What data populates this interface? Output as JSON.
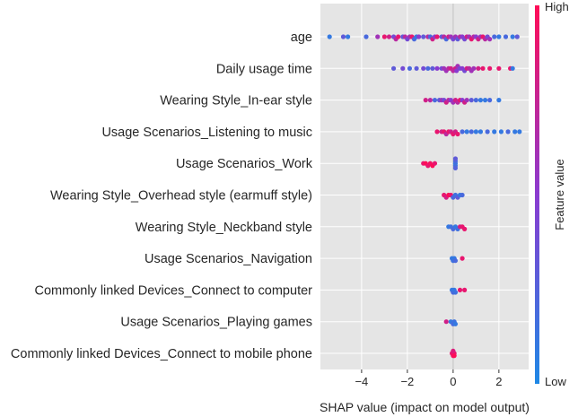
{
  "chart_data": {
    "type": "scatter",
    "subtype": "shap-beeswarm",
    "xlabel": "SHAP value (impact on model output)",
    "xlim": [
      -5.8,
      3.3
    ],
    "xticks": [
      -4,
      -2,
      0,
      2
    ],
    "xtick_labels": [
      "−4",
      "−2",
      "0",
      "2"
    ],
    "colorbar": {
      "label": "Feature value",
      "high": "High",
      "low": "Low",
      "low_color": "#1e88e5",
      "high_color": "#ff0d57"
    },
    "background_color": "#e5e5e5",
    "features": [
      {
        "name": "age",
        "points": [
          [
            -5.4,
            0.1
          ],
          [
            -4.8,
            0.3
          ],
          [
            -4.6,
            0.1
          ],
          [
            -3.8,
            0.2
          ],
          [
            -3.3,
            0.6
          ],
          [
            -3.0,
            0.9
          ],
          [
            -2.8,
            0.8
          ],
          [
            -2.6,
            0.4
          ],
          [
            -2.5,
            0.7
          ],
          [
            -2.4,
            0.9
          ],
          [
            -2.2,
            0.3
          ],
          [
            -2.1,
            0.7
          ],
          [
            -2.0,
            0.4
          ],
          [
            -1.9,
            0.6
          ],
          [
            -1.8,
            0.9
          ],
          [
            -1.7,
            0.2
          ],
          [
            -1.6,
            0.1
          ],
          [
            -1.5,
            0.5
          ],
          [
            -1.3,
            0.3
          ],
          [
            -1.1,
            0.7
          ],
          [
            -1.0,
            0.2
          ],
          [
            -0.9,
            0.8
          ],
          [
            -0.8,
            0.5
          ],
          [
            -0.7,
            0.9
          ],
          [
            -0.5,
            0.3
          ],
          [
            -0.4,
            0.7
          ],
          [
            -0.3,
            0.2
          ],
          [
            -0.2,
            0.8
          ],
          [
            -0.1,
            0.6
          ],
          [
            0.0,
            0.4
          ],
          [
            0.1,
            0.6
          ],
          [
            0.2,
            0.3
          ],
          [
            0.3,
            0.7
          ],
          [
            0.4,
            0.5
          ],
          [
            0.5,
            0.4
          ],
          [
            0.6,
            0.8
          ],
          [
            0.7,
            0.6
          ],
          [
            0.8,
            0.9
          ],
          [
            0.9,
            0.7
          ],
          [
            1.0,
            0.5
          ],
          [
            1.1,
            0.8
          ],
          [
            1.2,
            0.6
          ],
          [
            1.3,
            0.9
          ],
          [
            1.4,
            0.7
          ],
          [
            1.5,
            0.4
          ],
          [
            1.6,
            0.6
          ],
          [
            1.8,
            0.2
          ],
          [
            2.0,
            0.1
          ],
          [
            2.3,
            0.2
          ],
          [
            2.6,
            0.1
          ],
          [
            2.8,
            0.3
          ]
        ]
      },
      {
        "name": "Daily usage time",
        "points": [
          [
            -2.6,
            0.3
          ],
          [
            -2.2,
            0.4
          ],
          [
            -1.9,
            0.2
          ],
          [
            -1.6,
            0.3
          ],
          [
            -1.3,
            0.4
          ],
          [
            -1.1,
            0.2
          ],
          [
            -0.9,
            0.3
          ],
          [
            -0.7,
            0.5
          ],
          [
            -0.5,
            0.4
          ],
          [
            -0.4,
            0.6
          ],
          [
            -0.3,
            0.6
          ],
          [
            -0.2,
            0.7
          ],
          [
            -0.1,
            0.8
          ],
          [
            0.0,
            0.7
          ],
          [
            0.1,
            0.8
          ],
          [
            0.15,
            0.5
          ],
          [
            0.2,
            0.6
          ],
          [
            0.3,
            0.4
          ],
          [
            0.4,
            0.5
          ],
          [
            0.5,
            0.4
          ],
          [
            0.6,
            0.8
          ],
          [
            0.7,
            0.7
          ],
          [
            0.8,
            0.6
          ],
          [
            0.9,
            0.6
          ],
          [
            1.1,
            0.8
          ],
          [
            1.3,
            0.9
          ],
          [
            1.6,
            0.9
          ],
          [
            2.0,
            0.9
          ],
          [
            2.5,
            0.9
          ],
          [
            2.6,
            0.1
          ]
        ]
      },
      {
        "name": "Wearing Style_In-ear style",
        "points": [
          [
            -1.2,
            0.8
          ],
          [
            -1.0,
            0.7
          ],
          [
            -0.8,
            0.2
          ],
          [
            -0.6,
            0.3
          ],
          [
            -0.5,
            0.6
          ],
          [
            -0.4,
            0.4
          ],
          [
            -0.3,
            0.8
          ],
          [
            -0.2,
            0.7
          ],
          [
            -0.1,
            0.5
          ],
          [
            0.0,
            0.6
          ],
          [
            0.1,
            0.8
          ],
          [
            0.2,
            0.7
          ],
          [
            0.3,
            0.9
          ],
          [
            0.4,
            0.5
          ],
          [
            0.5,
            0.8
          ],
          [
            0.6,
            0.6
          ],
          [
            0.8,
            0.3
          ],
          [
            1.0,
            0.2
          ],
          [
            1.2,
            0.1
          ],
          [
            1.4,
            0.1
          ],
          [
            1.6,
            0.2
          ],
          [
            2.0,
            0.1
          ]
        ]
      },
      {
        "name": "Usage Scenarios_Listening to music",
        "points": [
          [
            -0.7,
            0.9
          ],
          [
            -0.5,
            0.8
          ],
          [
            -0.4,
            0.9
          ],
          [
            -0.3,
            0.7
          ],
          [
            -0.2,
            0.9
          ],
          [
            -0.1,
            0.8
          ],
          [
            0.0,
            0.9
          ],
          [
            0.1,
            0.8
          ],
          [
            0.2,
            0.9
          ],
          [
            0.4,
            0.2
          ],
          [
            0.6,
            0.1
          ],
          [
            0.8,
            0.2
          ],
          [
            1.0,
            0.1
          ],
          [
            1.2,
            0.1
          ],
          [
            1.5,
            0.2
          ],
          [
            1.8,
            0.1
          ],
          [
            2.1,
            0.1
          ],
          [
            2.4,
            0.2
          ],
          [
            2.7,
            0.1
          ],
          [
            2.9,
            0.1
          ]
        ]
      },
      {
        "name": "Usage Scenarios_Work",
        "points": [
          [
            -1.3,
            0.9
          ],
          [
            -1.2,
            1.0
          ],
          [
            -1.1,
            0.9
          ],
          [
            -1.0,
            0.95
          ],
          [
            -0.9,
            1.0
          ],
          [
            -0.8,
            0.9
          ],
          [
            0.1,
            0.1
          ],
          [
            0.1,
            0.15
          ],
          [
            0.1,
            0.2
          ],
          [
            0.1,
            0.25
          ],
          [
            0.1,
            0.3
          ]
        ]
      },
      {
        "name": "Wearing Style_Overhead style (earmuff style)",
        "points": [
          [
            -0.4,
            0.9
          ],
          [
            -0.3,
            0.8
          ],
          [
            -0.2,
            1.0
          ],
          [
            -0.1,
            0.9
          ],
          [
            0.0,
            0.2
          ],
          [
            0.1,
            0.15
          ],
          [
            0.2,
            0.3
          ],
          [
            0.3,
            0.1
          ],
          [
            0.4,
            0.2
          ]
        ]
      },
      {
        "name": "Wearing Style_Neckband style",
        "points": [
          [
            -0.2,
            0.1
          ],
          [
            -0.1,
            0.15
          ],
          [
            0.0,
            0.2
          ],
          [
            0.1,
            0.1
          ],
          [
            0.2,
            0.15
          ],
          [
            0.3,
            0.8
          ],
          [
            0.4,
            0.9
          ],
          [
            0.5,
            0.9
          ]
        ]
      },
      {
        "name": "Usage Scenarios_Navigation",
        "points": [
          [
            -0.05,
            0.1
          ],
          [
            0.0,
            0.15
          ],
          [
            0.05,
            0.1
          ],
          [
            0.1,
            0.2
          ],
          [
            0.4,
            0.9
          ]
        ]
      },
      {
        "name": "Commonly linked Devices_Connect to computer",
        "points": [
          [
            -0.05,
            0.1
          ],
          [
            0.0,
            0.2
          ],
          [
            0.05,
            0.1
          ],
          [
            0.1,
            0.15
          ],
          [
            0.3,
            0.9
          ],
          [
            0.5,
            0.9
          ]
        ]
      },
      {
        "name": "Usage Scenarios_Playing games",
        "points": [
          [
            -0.3,
            0.8
          ],
          [
            -0.1,
            0.1
          ],
          [
            0.0,
            0.2
          ],
          [
            0.05,
            0.15
          ],
          [
            0.1,
            0.1
          ]
        ]
      },
      {
        "name": "Commonly linked Devices_Connect to mobile phone",
        "points": [
          [
            -0.05,
            0.9
          ],
          [
            0.0,
            0.95
          ],
          [
            0.05,
            0.9
          ],
          [
            0.0,
            0.85
          ],
          [
            0.05,
            1.0
          ]
        ]
      }
    ]
  }
}
